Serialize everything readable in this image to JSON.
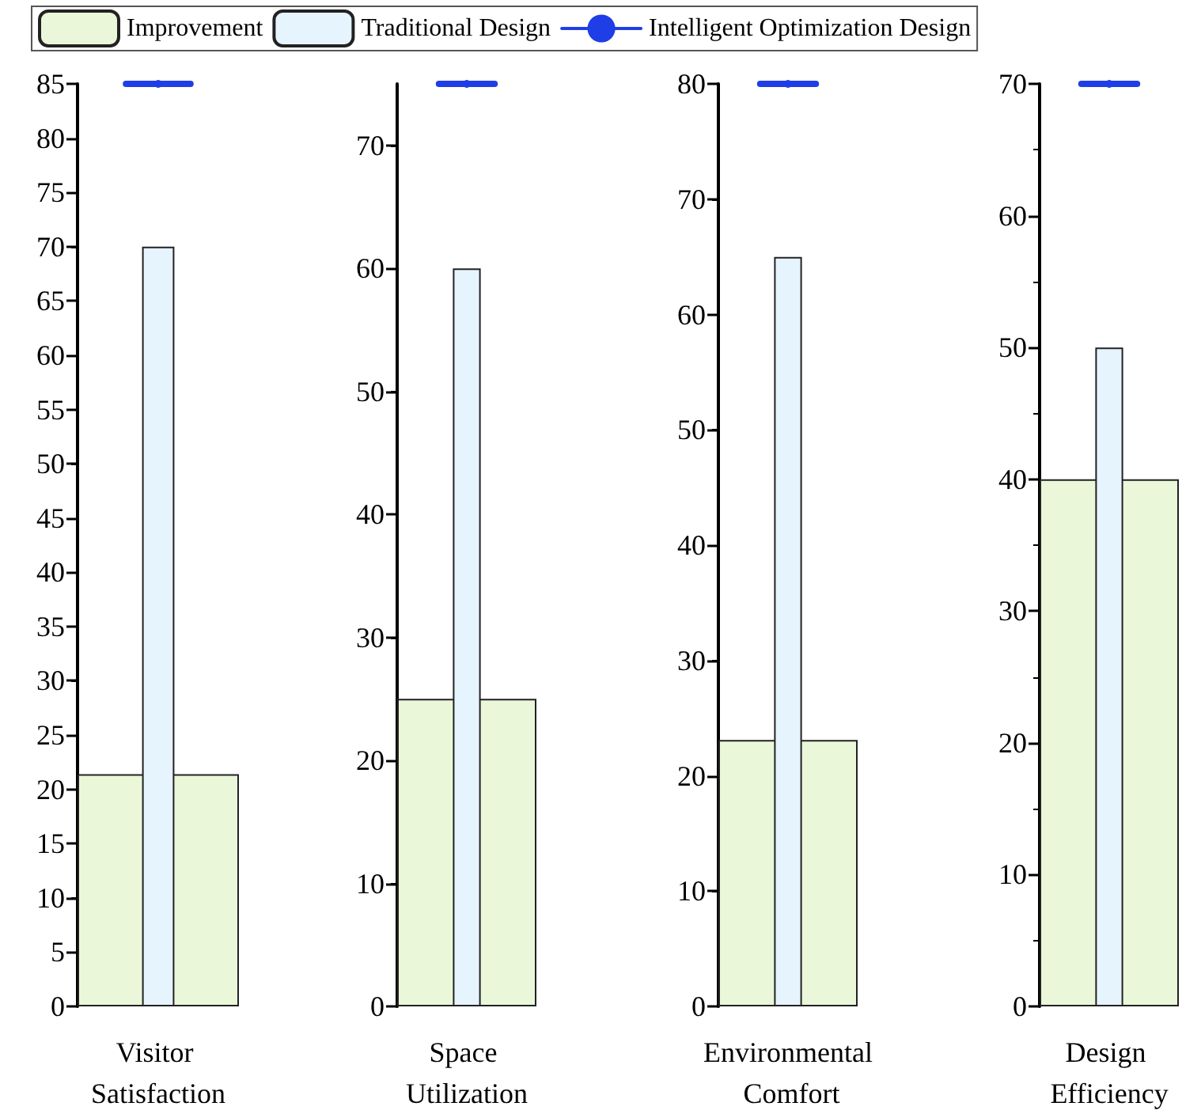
{
  "chart_data": [
    {
      "type": "bar",
      "categories": [
        "Visitor Satisfaction"
      ],
      "marker": "circle",
      "legend": "top",
      "grid": false,
      "ylim": [
        0,
        85
      ],
      "yticks": [
        0,
        5,
        10,
        15,
        20,
        25,
        30,
        35,
        40,
        45,
        50,
        55,
        60,
        65,
        70,
        75,
        80,
        85
      ],
      "series": [
        {
          "name": "Improvement",
          "color": "#eaf7d9",
          "values": [
            21.4
          ]
        },
        {
          "name": "Traditional Design",
          "color": "#e6f4fd",
          "values": [
            70
          ]
        },
        {
          "name": "Intelligent Optimization Design",
          "type": "line",
          "color": "#1f3ee6",
          "values": [
            85
          ]
        }
      ]
    },
    {
      "type": "bar",
      "categories": [
        "Space Utilization"
      ],
      "marker": "circle",
      "legend": false,
      "grid": false,
      "ylim": [
        0,
        75
      ],
      "yticks": [
        0,
        10,
        20,
        30,
        40,
        50,
        60,
        70
      ],
      "series": [
        {
          "color": "#eaf7d9",
          "values": [
            25
          ]
        },
        {
          "color": "#e6f4fd",
          "values": [
            60
          ]
        },
        {
          "type": "line",
          "color": "#1f3ee6",
          "values": [
            75
          ]
        }
      ]
    },
    {
      "type": "bar",
      "categories": [
        "Environmental Comfort"
      ],
      "marker": "circle",
      "legend": false,
      "grid": false,
      "ylim": [
        0,
        80
      ],
      "yticks": [
        0,
        10,
        20,
        30,
        40,
        50,
        60,
        70,
        80
      ],
      "series": [
        {
          "color": "#eaf7d9",
          "values": [
            23.1
          ]
        },
        {
          "color": "#e6f4fd",
          "values": [
            65
          ]
        },
        {
          "type": "line",
          "color": "#1f3ee6",
          "values": [
            80
          ]
        }
      ]
    },
    {
      "type": "bar",
      "categories": [
        "Design Efficiency"
      ],
      "marker": "circle",
      "legend": false,
      "grid": false,
      "ylim": [
        0,
        70
      ],
      "yticks": [
        0,
        10,
        20,
        30,
        40,
        50,
        60,
        70
      ],
      "series": [
        {
          "color": "#eaf7d9",
          "values": [
            40
          ]
        },
        {
          "color": "#e6f4fd",
          "values": [
            50
          ]
        },
        {
          "type": "line",
          "color": "#1f3ee6",
          "values": [
            70
          ]
        }
      ]
    }
  ]
}
